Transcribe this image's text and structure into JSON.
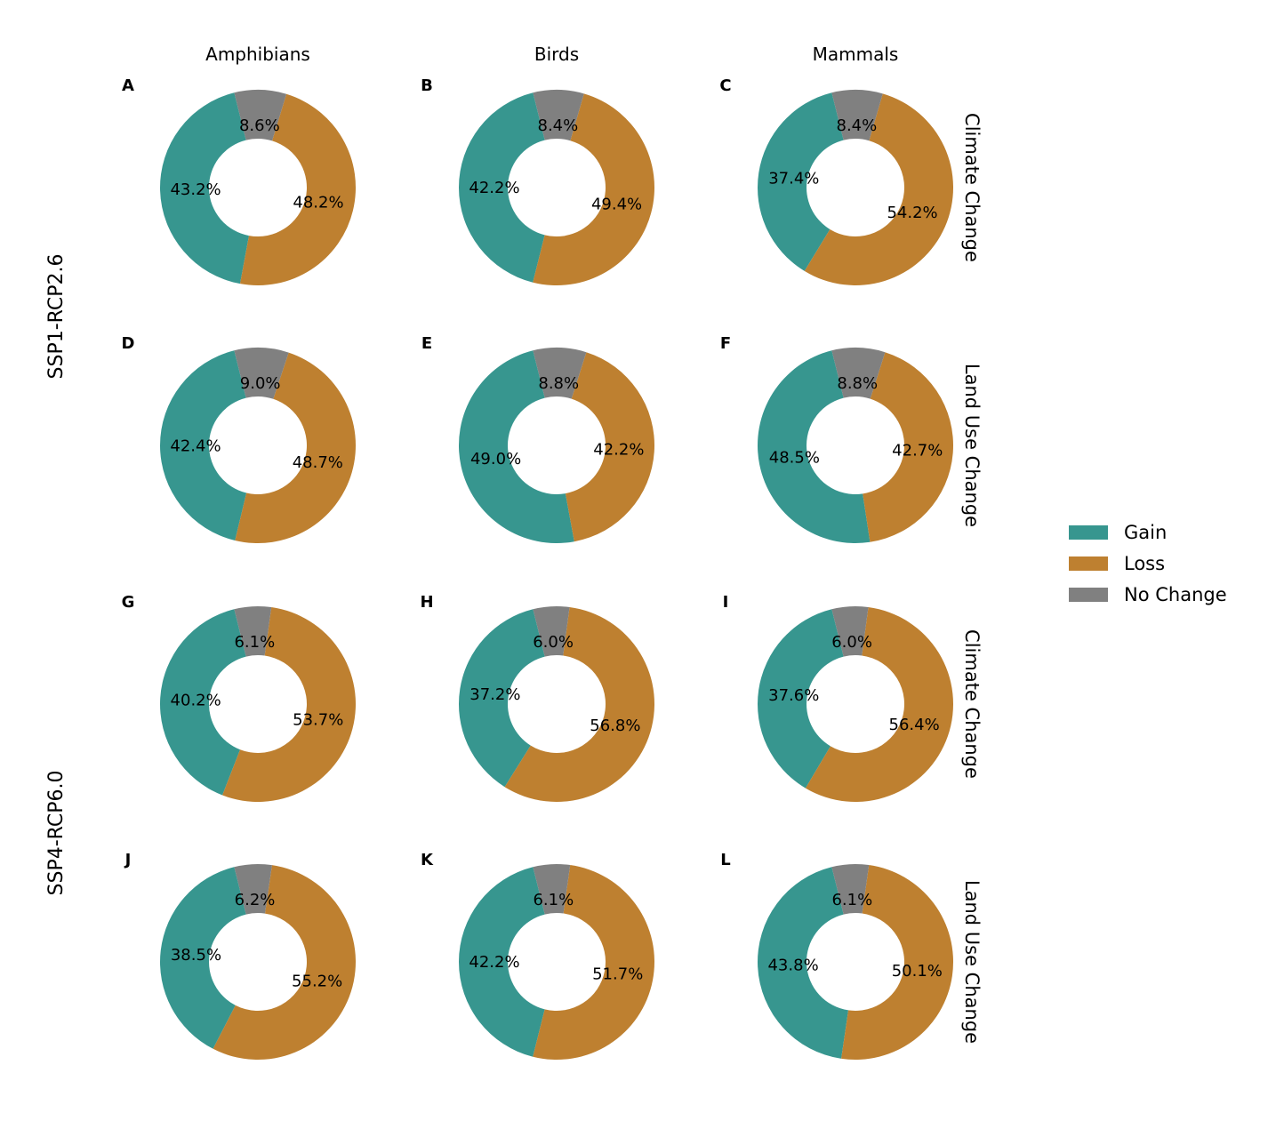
{
  "chart_data": {
    "type": "pie",
    "columns": [
      "Amphibians",
      "Birds",
      "Mammals"
    ],
    "rows": [
      "Climate Change",
      "Land Use Change",
      "Climate Change",
      "Land Use Change"
    ],
    "scenarios": [
      {
        "label": "SSP1-RCP2.6",
        "rows": [
          0,
          1
        ]
      },
      {
        "label": "SSP4-RCP6.0",
        "rows": [
          2,
          3
        ]
      }
    ],
    "legend": {
      "placement": "right",
      "entries": [
        {
          "name": "Gain",
          "color": "#37968f"
        },
        {
          "name": "Loss",
          "color": "#be8030"
        },
        {
          "name": "No Change",
          "color": "#808080"
        }
      ]
    },
    "panels": [
      {
        "letter": "A",
        "row": 0,
        "col": 0,
        "values": [
          43.2,
          48.2,
          8.6
        ],
        "labels": [
          "43.2%",
          "48.2%",
          "8.6%"
        ]
      },
      {
        "letter": "B",
        "row": 0,
        "col": 1,
        "values": [
          42.2,
          49.4,
          8.4
        ],
        "labels": [
          "42.2%",
          "49.4%",
          "8.4%"
        ]
      },
      {
        "letter": "C",
        "row": 0,
        "col": 2,
        "values": [
          37.4,
          54.2,
          8.4
        ],
        "labels": [
          "37.4%",
          "54.2%",
          "8.4%"
        ]
      },
      {
        "letter": "D",
        "row": 1,
        "col": 0,
        "values": [
          42.4,
          48.7,
          9.0
        ],
        "labels": [
          "42.4%",
          "48.7%",
          "9.0%"
        ]
      },
      {
        "letter": "E",
        "row": 1,
        "col": 1,
        "values": [
          49.0,
          42.2,
          8.8
        ],
        "labels": [
          "49.0%",
          "42.2%",
          "8.8%"
        ]
      },
      {
        "letter": "F",
        "row": 1,
        "col": 2,
        "values": [
          48.5,
          42.7,
          8.8
        ],
        "labels": [
          "48.5%",
          "42.7%",
          "8.8%"
        ]
      },
      {
        "letter": "G",
        "row": 2,
        "col": 0,
        "values": [
          40.2,
          53.7,
          6.1
        ],
        "labels": [
          "40.2%",
          "53.7%",
          "6.1%"
        ]
      },
      {
        "letter": "H",
        "row": 2,
        "col": 1,
        "values": [
          37.2,
          56.8,
          6.0
        ],
        "labels": [
          "37.2%",
          "56.8%",
          "6.0%"
        ]
      },
      {
        "letter": "I",
        "row": 2,
        "col": 2,
        "values": [
          37.6,
          56.4,
          6.0
        ],
        "labels": [
          "37.6%",
          "56.4%",
          "6.0%"
        ]
      },
      {
        "letter": "J",
        "row": 3,
        "col": 0,
        "values": [
          38.5,
          55.2,
          6.2
        ],
        "labels": [
          "38.5%",
          "55.2%",
          "6.2%"
        ]
      },
      {
        "letter": "K",
        "row": 3,
        "col": 1,
        "values": [
          42.2,
          51.7,
          6.1
        ],
        "labels": [
          "42.2%",
          "51.7%",
          "6.1%"
        ]
      },
      {
        "letter": "L",
        "row": 3,
        "col": 2,
        "values": [
          43.8,
          50.1,
          6.1
        ],
        "labels": [
          "43.8%",
          "50.1%",
          "6.1%"
        ]
      }
    ]
  }
}
